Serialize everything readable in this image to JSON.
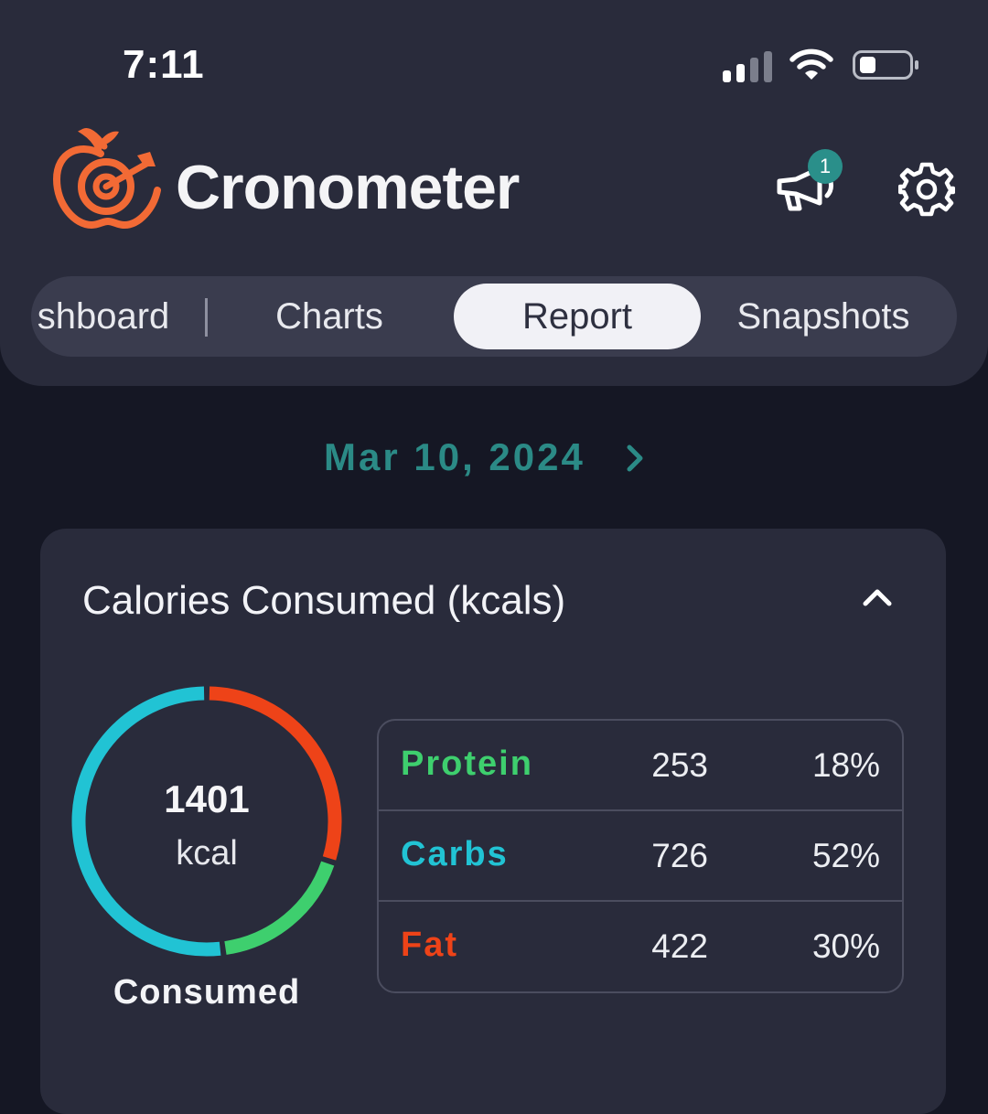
{
  "status_bar": {
    "time": "7:11",
    "signal_bars_filled": 2,
    "battery_percent": 25
  },
  "header": {
    "app_name": "Cronometer",
    "notifications_count": "1"
  },
  "tabs": [
    {
      "label": "shboard",
      "active": false
    },
    {
      "label": "Charts",
      "active": false
    },
    {
      "label": "Report",
      "active": true
    },
    {
      "label": "Snapshots",
      "active": false
    }
  ],
  "date": {
    "label": "Mar 10, 2024"
  },
  "calories_card": {
    "title": "Calories Consumed (kcals)",
    "total": "1401",
    "unit": "kcal",
    "caption": "Consumed",
    "macros": [
      {
        "name": "Protein",
        "kcal": "253",
        "percent": "18%",
        "fraction": 0.18,
        "color": "#3ecf6e"
      },
      {
        "name": "Carbs",
        "kcal": "726",
        "percent": "52%",
        "fraction": 0.52,
        "color": "#21c3d4"
      },
      {
        "name": "Fat",
        "kcal": "422",
        "percent": "30%",
        "fraction": 0.3,
        "color": "#ee4318"
      }
    ]
  },
  "colors": {
    "accent": "#2b8a86",
    "logo": "#f26a35",
    "panel": "#292b3b",
    "background": "#151724"
  }
}
